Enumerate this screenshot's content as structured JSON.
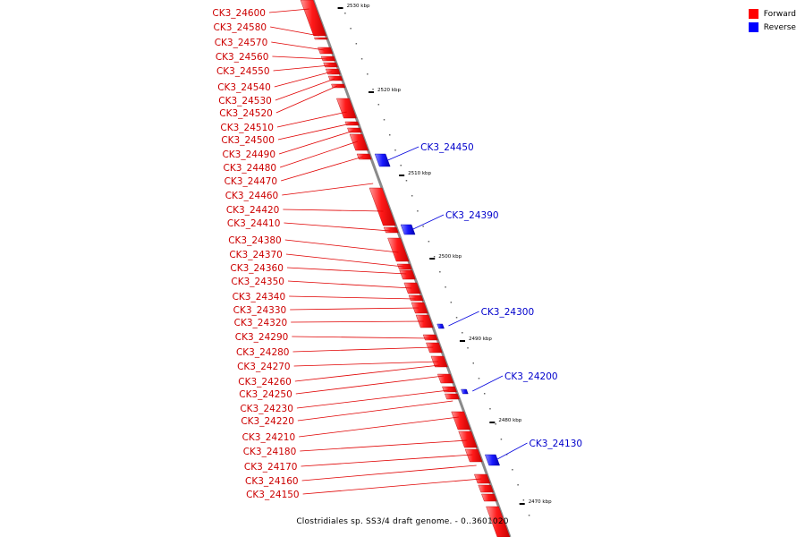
{
  "legend": {
    "forward": {
      "label": "Forward",
      "color": "#ff0000"
    },
    "reverse": {
      "label": "Reverse",
      "color": "#0000ff"
    }
  },
  "caption": "Clostridiales sp. SS3/4 draft genome. - 0..3601020",
  "scale_markers": [
    {
      "kbp": 2530,
      "label": "2530 kbp"
    },
    {
      "kbp": 2520,
      "label": "2520 kbp"
    },
    {
      "kbp": 2510,
      "label": "2510 kbp"
    },
    {
      "kbp": 2500,
      "label": "2500 kbp"
    },
    {
      "kbp": 2490,
      "label": "2490 kbp"
    },
    {
      "kbp": 2480,
      "label": "2480 kbp"
    },
    {
      "kbp": 2470,
      "label": "2470 kbp"
    }
  ],
  "forward_genes": [
    "CK3_24600",
    "CK3_24580",
    "CK3_24570",
    "CK3_24560",
    "CK3_24550",
    "CK3_24540",
    "CK3_24530",
    "CK3_24520",
    "CK3_24510",
    "CK3_24500",
    "CK3_24490",
    "CK3_24480",
    "CK3_24470",
    "CK3_24460",
    "CK3_24420",
    "CK3_24410",
    "CK3_24380",
    "CK3_24370",
    "CK3_24360",
    "CK3_24350",
    "CK3_24340",
    "CK3_24330",
    "CK3_24320",
    "CK3_24290",
    "CK3_24280",
    "CK3_24270",
    "CK3_24260",
    "CK3_24250",
    "CK3_24230",
    "CK3_24220",
    "CK3_24210",
    "CK3_24180",
    "CK3_24170",
    "CK3_24160",
    "CK3_24150"
  ],
  "reverse_genes": [
    "CK3_24450",
    "CK3_24390",
    "CK3_24300",
    "CK3_24200",
    "CK3_24130"
  ]
}
